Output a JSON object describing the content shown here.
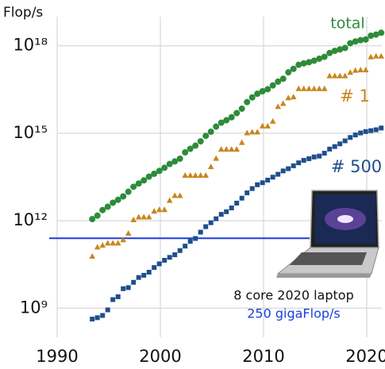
{
  "chart_data": {
    "type": "scatter",
    "y_label": "Flop/s",
    "log_y": true,
    "grid": true,
    "xlim": [
      1990,
      2021.5
    ],
    "xticks": [
      1990,
      2000,
      2010,
      2020
    ],
    "ylim": [
      100000000.0,
      1e+19
    ],
    "yticks": [
      {
        "value": 1000000000.0,
        "label": "10⁹"
      },
      {
        "value": 1000000000000.0,
        "label": "10¹²"
      },
      {
        "value": 1000000000000000.0,
        "label": "10¹⁵"
      },
      {
        "value": 1e+18,
        "label": "10¹⁸"
      }
    ],
    "x": [
      1993.4,
      1993.9,
      1994.4,
      1994.9,
      1995.4,
      1995.9,
      1996.4,
      1996.9,
      1997.4,
      1997.9,
      1998.4,
      1998.9,
      1999.4,
      1999.9,
      2000.4,
      2000.9,
      2001.4,
      2001.9,
      2002.4,
      2002.9,
      2003.4,
      2003.9,
      2004.4,
      2004.9,
      2005.4,
      2005.9,
      2006.4,
      2006.9,
      2007.4,
      2007.9,
      2008.4,
      2008.9,
      2009.4,
      2009.9,
      2010.4,
      2010.9,
      2011.4,
      2011.9,
      2012.4,
      2012.9,
      2013.4,
      2013.9,
      2014.4,
      2014.9,
      2015.4,
      2015.9,
      2016.4,
      2016.9,
      2017.4,
      2017.9,
      2018.4,
      2018.9,
      2019.4,
      2019.9,
      2020.4,
      2020.9,
      2021.4
    ],
    "series": [
      {
        "name": "total",
        "color": "#2e8b3a",
        "marker": "circle",
        "values": [
          1128000000000.0,
          1493000000000.0,
          2317000000000.0,
          3006000000000.0,
          4130000000000.0,
          5200000000000.0,
          6800000000000.0,
          9800000000000.0,
          14600000000000.0,
          18900000000000.0,
          24200000000000.0,
          32400000000000.0,
          40500000000000.0,
          50900000000000.0,
          65400000000000.0,
          88100000000000.0,
          108000000000000.0,
          134000000000000.0,
          220000000000000.0,
          293000000000000.0,
          375000000000000.0,
          528000000000000.0,
          813000000000000.0,
          1127000000000000.0,
          1690000000000000.0,
          2300000000000000.0,
          2790000000000000.0,
          3540000000000000.0,
          4920000000000000.0,
          6970000000000000.0,
          1.17e+16,
          1.695e+16,
          2.26e+16,
          2.76e+16,
          3.24e+16,
          4.37e+16,
          5.89e+16,
          7.42e+16,
          1.23e+17,
          1.62e+17,
          2.23e+17,
          2.5e+17,
          2.74e+17,
          3.09e+17,
          3.61e+17,
          4.2e+17,
          5.67e+17,
          6.72e+17,
          7.49e+17,
          8.45e+17,
          1.22e+18,
          1.41e+18,
          1.56e+18,
          1.65e+18,
          2.22e+18,
          2.43e+18,
          2.8e+18
        ]
      },
      {
        "name": "# 1",
        "color": "#c8861e",
        "marker": "triangle",
        "values": [
          59700000000.0,
          124000000000.0,
          143400000000.0,
          170400000000.0,
          170400000000.0,
          170400000000.0,
          220400000000.0,
          368200000000.0,
          1068000000000.0,
          1338000000000.0,
          1338000000000.0,
          1338000000000.0,
          2121000000000.0,
          2379000000000.0,
          2379000000000.0,
          4938000000000.0,
          7226000000000.0,
          7226000000000.0,
          35860000000000.0,
          35860000000000.0,
          35860000000000.0,
          35860000000000.0,
          35860000000000.0,
          70720000000000.0,
          136800000000000.0,
          280600000000000.0,
          280600000000000.0,
          280600000000000.0,
          280600000000000.0,
          478200000000000.0,
          1026000000000000.0,
          1105000000000000.0,
          1105000000000000.0,
          1759000000000000.0,
          1759000000000000.0,
          2566000000000000.0,
          8162000000000000.0,
          1.051e+16,
          1.632e+16,
          1.759e+16,
          3.386e+16,
          3.386e+16,
          3.386e+16,
          3.386e+16,
          3.386e+16,
          3.386e+16,
          9.301e+16,
          9.301e+16,
          9.301e+16,
          9.301e+16,
          1.223e+17,
          1.435e+17,
          1.486e+17,
          1.486e+17,
          4.155e+17,
          4.42e+17,
          4.42e+17
        ]
      },
      {
        "name": "# 500",
        "color": "#1f4e8c",
        "marker": "square",
        "values": [
          420000000.0,
          470000000.0,
          560000000.0,
          870000000.0,
          1960000000.0,
          2450000000.0,
          4640000000.0,
          5050000000.0,
          7670000000.0,
          11240000000.0,
          13380000000.0,
          17100000000.0,
          24700000000.0,
          33100000000.0,
          43800000000.0,
          55100000000.0,
          67800000000.0,
          94300000000.0,
          134300000000.0,
          195800000000.0,
          245100000000.0,
          403400000000.0,
          624000000000.0,
          850600000000.0,
          1166000000000.0,
          1646000000000.0,
          2026000000000.0,
          2737000000000.0,
          4005000000000.0,
          5929000000000.0,
          9000000000000.0,
          12640000000000.0,
          17090000000000.0,
          20050000000000.0,
          24670000000000.0,
          31120000000000.0,
          39090000000000.0,
          50940000000000.0,
          60820000000000.0,
          76500000000000.0,
          96620000000000.0,
          117800000000000.0,
          133700000000000.0,
          153400000000000.0,
          164700000000000.0,
          206400000000000.0,
          286100000000000.0,
          349300000000000.0,
          432200000000000.0,
          548700000000000.0,
          715600000000000.0,
          874800000000000.0,
          1022000000000000.0,
          1142000000000000.0,
          1228000000000000.0,
          1317000000000000.0,
          1511000000000000.0
        ]
      }
    ],
    "laptop": {
      "label": "8 core 2020 laptop",
      "value": 250000000000.0,
      "value_label": "250 gigaFlop/s",
      "color": "#1a3fe0"
    }
  }
}
